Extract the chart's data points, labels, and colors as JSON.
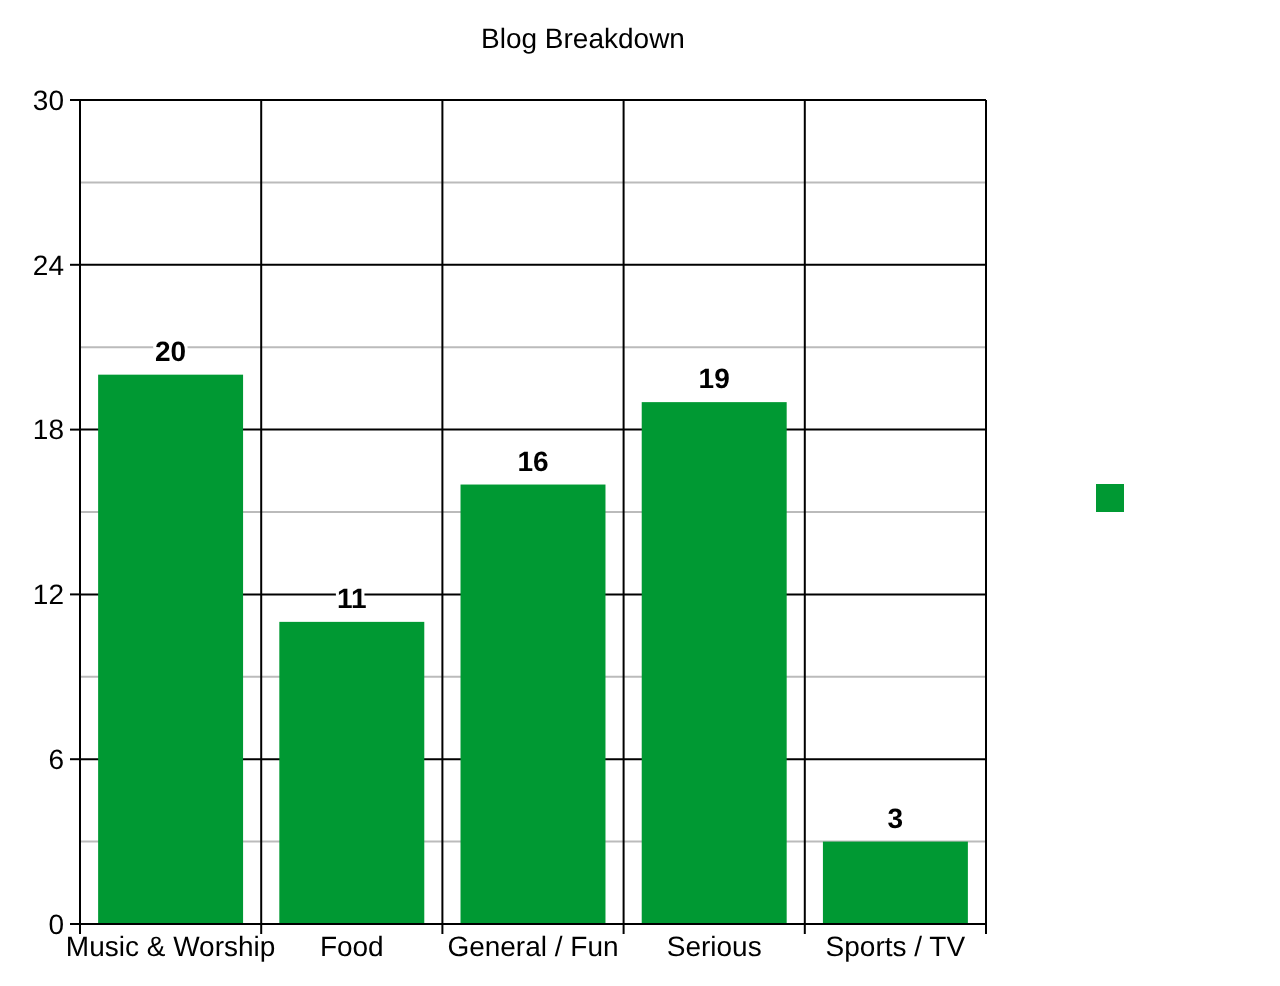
{
  "chart_data": {
    "type": "bar",
    "title": "Blog Breakdown",
    "categories": [
      "Music & Worship",
      "Food",
      "General / Fun",
      "Serious",
      "Sports / TV"
    ],
    "series": [
      {
        "color": "#009933",
        "values": [
          20,
          11,
          16,
          19,
          3
        ]
      }
    ],
    "ylim": [
      0,
      30
    ],
    "yticks": [
      0,
      6,
      12,
      18,
      24,
      30
    ],
    "grid": true,
    "data_labels": true
  }
}
